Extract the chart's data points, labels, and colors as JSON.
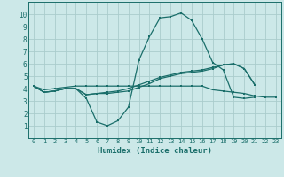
{
  "xlabel": "Humidex (Indice chaleur)",
  "xlim": [
    -0.5,
    23.5
  ],
  "ylim": [
    0,
    11
  ],
  "xticks": [
    0,
    1,
    2,
    3,
    4,
    5,
    6,
    7,
    8,
    9,
    10,
    11,
    12,
    13,
    14,
    15,
    16,
    17,
    18,
    19,
    20,
    21,
    22,
    23
  ],
  "yticks": [
    1,
    2,
    3,
    4,
    5,
    6,
    7,
    8,
    9,
    10
  ],
  "background_color": "#cce8e8",
  "grid_color": "#aacccc",
  "line_color": "#1a6e6a",
  "series": [
    {
      "x": [
        0,
        1,
        2,
        3,
        4,
        5,
        6,
        7,
        8,
        9,
        10,
        11,
        12,
        13,
        14,
        15,
        16,
        17,
        18,
        19,
        20,
        21,
        22,
        23
      ],
      "y": [
        4.2,
        3.7,
        3.8,
        4.0,
        4.0,
        3.2,
        1.3,
        1.0,
        1.4,
        2.5,
        6.3,
        8.2,
        9.7,
        9.8,
        10.1,
        9.5,
        8.0,
        6.1,
        5.5,
        3.3,
        3.2,
        3.3,
        null,
        null
      ]
    },
    {
      "x": [
        0,
        1,
        2,
        3,
        4,
        5,
        6,
        7,
        8,
        9,
        10,
        11,
        12,
        13,
        14,
        15,
        16,
        17,
        18,
        19,
        20,
        21,
        22,
        23
      ],
      "y": [
        4.2,
        3.7,
        3.8,
        4.0,
        4.0,
        3.5,
        3.6,
        3.6,
        3.7,
        3.8,
        4.1,
        4.4,
        4.8,
        5.0,
        5.2,
        5.3,
        5.4,
        5.6,
        5.9,
        6.0,
        5.6,
        4.3,
        null,
        null
      ]
    },
    {
      "x": [
        0,
        1,
        2,
        3,
        4,
        5,
        6,
        7,
        8,
        9,
        10,
        11,
        12,
        13,
        14,
        15,
        16,
        17,
        18,
        19,
        20,
        21,
        22,
        23
      ],
      "y": [
        4.2,
        3.7,
        3.8,
        4.0,
        4.0,
        3.5,
        3.6,
        3.7,
        3.8,
        4.0,
        4.3,
        4.6,
        4.9,
        5.1,
        5.3,
        5.4,
        5.5,
        5.7,
        5.9,
        6.0,
        5.6,
        4.3,
        null,
        null
      ]
    },
    {
      "x": [
        0,
        1,
        2,
        3,
        4,
        5,
        6,
        7,
        8,
        9,
        10,
        11,
        12,
        13,
        14,
        15,
        16,
        17,
        18,
        19,
        20,
        21,
        22,
        23
      ],
      "y": [
        4.2,
        3.9,
        4.0,
        4.1,
        4.2,
        4.2,
        4.2,
        4.2,
        4.2,
        4.2,
        4.2,
        4.2,
        4.2,
        4.2,
        4.2,
        4.2,
        4.2,
        3.9,
        3.8,
        3.7,
        3.6,
        3.4,
        3.3,
        3.3
      ]
    }
  ]
}
